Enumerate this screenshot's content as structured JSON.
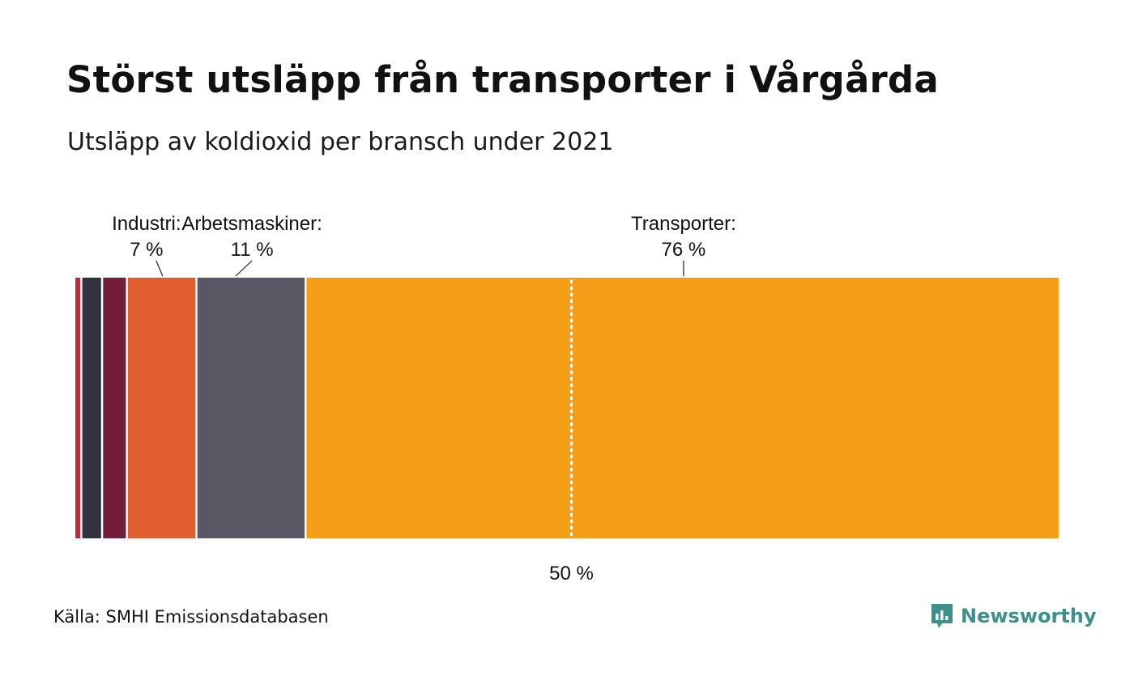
{
  "header": {
    "title": "Störst utsläpp från transporter i Vårgårda",
    "subtitle": "Utsläpp av koldioxid per bransch under 2021"
  },
  "footer": {
    "source": "Källa: SMHI Emissionsdatabasen",
    "brand": "Newsworthy",
    "brand_color": "#3f8f8a",
    "brand_icon": "bar-chart-speech-bubble-icon"
  },
  "chart_data": {
    "type": "bar",
    "orientation": "horizontal-stacked",
    "unit": "%",
    "xlim": [
      0,
      100
    ],
    "reference_line": {
      "value": 50,
      "label": "50 %",
      "style": "dotted"
    },
    "series": [
      {
        "value": 0.7,
        "color": "#b5303b"
      },
      {
        "value": 2.1,
        "color": "#32313f"
      },
      {
        "value": 2.5,
        "color": "#731d3b"
      },
      {
        "name": "Industri:",
        "value": 7,
        "value_label": "7 %",
        "color": "#e05e2f"
      },
      {
        "name": "Arbetsmaskiner:",
        "value": 11,
        "value_label": "11 %",
        "color": "#5a5765"
      },
      {
        "name": "Transporter:",
        "value": 76,
        "value_label": "76 %",
        "color": "#f59e17"
      }
    ]
  }
}
